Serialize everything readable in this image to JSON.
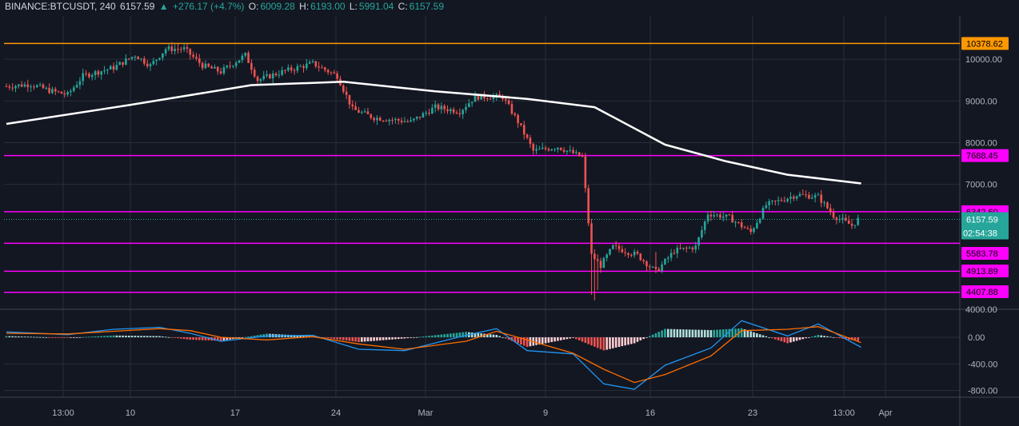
{
  "header": {
    "symbol": "BINANCE:BTCUSDT, 240",
    "last": "6157.59",
    "change": "+276.17 (+4.7%)",
    "o_label": "O:",
    "o": "6009.28",
    "h_label": "H:",
    "h": "6193.00",
    "l_label": "L:",
    "l": "5991.04",
    "c_label": "C:",
    "c": "6157.59"
  },
  "colors": {
    "background": "#131722",
    "grid": "#2a2e39",
    "up": "#26a69a",
    "down": "#ef5350",
    "ma": "#ffffff",
    "resistance": "#ff9800",
    "level": "#ff00ff",
    "macd_line": "#2196f3",
    "signal_line": "#ff6d00",
    "countdown_bg": "#26a69a"
  },
  "chart_data": [
    {
      "type": "candlestick",
      "x_tick_labels": [
        "13:00",
        "10",
        "17",
        "24",
        "Mar",
        "9",
        "16",
        "23",
        "13:00",
        "Apr"
      ],
      "y_tick_labels": [
        "10000.00",
        "9000.00",
        "8000.00",
        "7000.00",
        "4000.00"
      ],
      "ylim": [
        4000,
        10800
      ],
      "price_path": [
        {
          "t": 0,
          "p": 9350
        },
        {
          "t": 8,
          "p": 9400
        },
        {
          "t": 14,
          "p": 9250
        },
        {
          "t": 20,
          "p": 9150
        },
        {
          "t": 25,
          "p": 9600
        },
        {
          "t": 35,
          "p": 9800
        },
        {
          "t": 42,
          "p": 10100
        },
        {
          "t": 47,
          "p": 9850
        },
        {
          "t": 52,
          "p": 10250
        },
        {
          "t": 58,
          "p": 10250
        },
        {
          "t": 64,
          "p": 9850
        },
        {
          "t": 70,
          "p": 9700
        },
        {
          "t": 78,
          "p": 10100
        },
        {
          "t": 82,
          "p": 9500
        },
        {
          "t": 90,
          "p": 9700
        },
        {
          "t": 100,
          "p": 9900
        },
        {
          "t": 108,
          "p": 9600
        },
        {
          "t": 113,
          "p": 8800
        },
        {
          "t": 120,
          "p": 8600
        },
        {
          "t": 132,
          "p": 8500
        },
        {
          "t": 140,
          "p": 8850
        },
        {
          "t": 148,
          "p": 8750
        },
        {
          "t": 153,
          "p": 9100
        },
        {
          "t": 162,
          "p": 9100
        },
        {
          "t": 167,
          "p": 8500
        },
        {
          "t": 172,
          "p": 7800
        },
        {
          "t": 180,
          "p": 7900
        },
        {
          "t": 188,
          "p": 7650
        },
        {
          "t": 191,
          "p": 5300
        },
        {
          "t": 194,
          "p": 5050
        },
        {
          "t": 198,
          "p": 5500
        },
        {
          "t": 206,
          "p": 5300
        },
        {
          "t": 212,
          "p": 4900
        },
        {
          "t": 218,
          "p": 5400
        },
        {
          "t": 225,
          "p": 5500
        },
        {
          "t": 229,
          "p": 6300
        },
        {
          "t": 236,
          "p": 6200
        },
        {
          "t": 243,
          "p": 5850
        },
        {
          "t": 248,
          "p": 6500
        },
        {
          "t": 258,
          "p": 6750
        },
        {
          "t": 265,
          "p": 6700
        },
        {
          "t": 270,
          "p": 6250
        },
        {
          "t": 276,
          "p": 6010
        },
        {
          "t": 278,
          "p": 6157
        }
      ],
      "moving_average": [
        {
          "t": 0,
          "p": 8450
        },
        {
          "t": 40,
          "p": 8900
        },
        {
          "t": 80,
          "p": 9380
        },
        {
          "t": 110,
          "p": 9460
        },
        {
          "t": 140,
          "p": 9230
        },
        {
          "t": 170,
          "p": 9050
        },
        {
          "t": 192,
          "p": 8850
        },
        {
          "t": 215,
          "p": 7950
        },
        {
          "t": 235,
          "p": 7550
        },
        {
          "t": 255,
          "p": 7230
        },
        {
          "t": 279,
          "p": 7020
        }
      ],
      "horizontal_levels": [
        {
          "value": 10378.62,
          "label": "10378.62",
          "color": "#ff9800"
        },
        {
          "value": 7688.45,
          "label": "7688.45",
          "color": "#ff00ff"
        },
        {
          "value": 6342.6,
          "label": "6342.60",
          "color": "#ff00ff"
        },
        {
          "value": 5583.78,
          "label": "5583.78",
          "color": "#ff00ff"
        },
        {
          "value": 4913.89,
          "label": "4913.89",
          "color": "#ff00ff"
        },
        {
          "value": 4407.88,
          "label": "4407.88",
          "color": "#ff00ff"
        }
      ],
      "current_price": {
        "value": 6157.59,
        "label": "6157.59"
      },
      "countdown": "02:54:38"
    },
    {
      "type": "macd",
      "y_tick_labels": [
        "0.00",
        "-400.00",
        "-800.00"
      ],
      "ylim": [
        -850,
        170
      ],
      "macd": [
        {
          "t": 0,
          "v": 80
        },
        {
          "t": 20,
          "v": 40
        },
        {
          "t": 35,
          "v": 120
        },
        {
          "t": 50,
          "v": 150
        },
        {
          "t": 60,
          "v": 60
        },
        {
          "t": 70,
          "v": -60
        },
        {
          "t": 85,
          "v": 20
        },
        {
          "t": 100,
          "v": 30
        },
        {
          "t": 115,
          "v": -180
        },
        {
          "t": 130,
          "v": -200
        },
        {
          "t": 150,
          "v": 30
        },
        {
          "t": 160,
          "v": 130
        },
        {
          "t": 170,
          "v": -200
        },
        {
          "t": 185,
          "v": -250
        },
        {
          "t": 195,
          "v": -700
        },
        {
          "t": 205,
          "v": -780
        },
        {
          "t": 215,
          "v": -420
        },
        {
          "t": 230,
          "v": -160
        },
        {
          "t": 240,
          "v": 250
        },
        {
          "t": 255,
          "v": 20
        },
        {
          "t": 265,
          "v": 200
        },
        {
          "t": 279,
          "v": -150
        }
      ],
      "signal": [
        {
          "t": 0,
          "v": 60
        },
        {
          "t": 20,
          "v": 50
        },
        {
          "t": 35,
          "v": 90
        },
        {
          "t": 50,
          "v": 130
        },
        {
          "t": 60,
          "v": 100
        },
        {
          "t": 70,
          "v": 0
        },
        {
          "t": 85,
          "v": -40
        },
        {
          "t": 100,
          "v": 10
        },
        {
          "t": 115,
          "v": -100
        },
        {
          "t": 130,
          "v": -180
        },
        {
          "t": 150,
          "v": -60
        },
        {
          "t": 160,
          "v": 90
        },
        {
          "t": 170,
          "v": -40
        },
        {
          "t": 185,
          "v": -240
        },
        {
          "t": 195,
          "v": -480
        },
        {
          "t": 205,
          "v": -680
        },
        {
          "t": 215,
          "v": -560
        },
        {
          "t": 230,
          "v": -280
        },
        {
          "t": 240,
          "v": 100
        },
        {
          "t": 255,
          "v": 120
        },
        {
          "t": 265,
          "v": 160
        },
        {
          "t": 279,
          "v": -80
        }
      ]
    }
  ]
}
